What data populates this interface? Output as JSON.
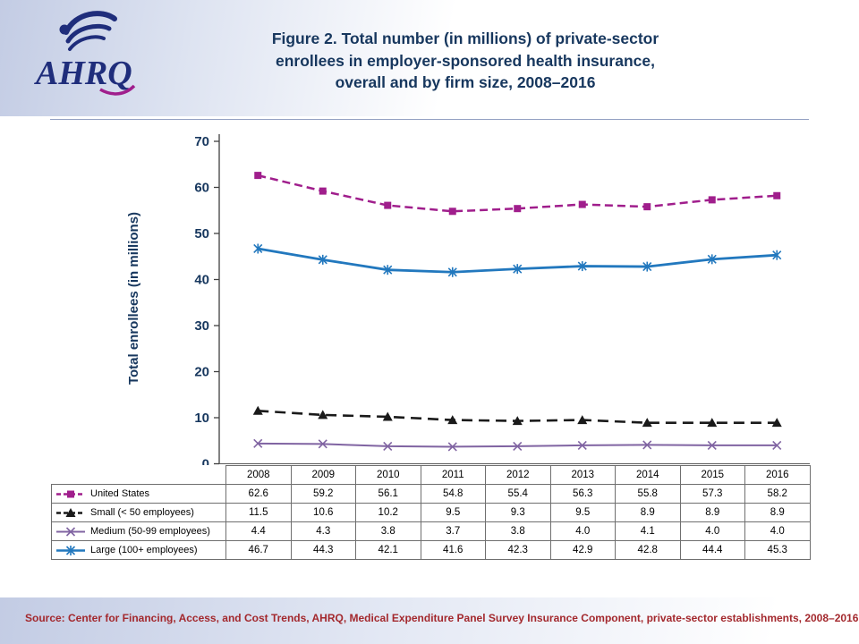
{
  "header": {
    "logo_text": "AHRQ",
    "title": "Figure 2. Total number (in millions) of private-sector\nenrollees in employer-sponsored health insurance,\noverall and by firm size, 2008–2016",
    "title_color": "#17375E"
  },
  "chart_data": {
    "type": "line",
    "title": "Figure 2. Total number (in millions) of private-sector enrollees in employer-sponsored health insurance, overall and by firm size, 2008–2016",
    "xlabel": "",
    "ylabel": "Total enrollees (in millions)",
    "ylim": [
      0,
      70
    ],
    "ytick_step": 10,
    "grid": false,
    "legend_position": "table-left",
    "categories": [
      "2008",
      "2009",
      "2010",
      "2011",
      "2012",
      "2013",
      "2014",
      "2015",
      "2016"
    ],
    "series": [
      {
        "name": "United States",
        "values": [
          62.6,
          59.2,
          56.1,
          54.8,
          55.4,
          56.3,
          55.8,
          57.3,
          58.2
        ],
        "color": "#A01E8C",
        "line_style": "dashed",
        "dash": [
          9,
          5
        ],
        "width": 2.5,
        "marker": "square"
      },
      {
        "name": "Small (< 50 employees)",
        "values": [
          11.5,
          10.6,
          10.2,
          9.5,
          9.3,
          9.5,
          8.9,
          8.9,
          8.9
        ],
        "color": "#1A1A1A",
        "line_style": "dashed",
        "dash": [
          12,
          7
        ],
        "width": 2.6,
        "marker": "triangle"
      },
      {
        "name": "Medium (50-99 employees)",
        "values": [
          4.4,
          4.3,
          3.8,
          3.7,
          3.8,
          4.0,
          4.1,
          4.0,
          4.0
        ],
        "color": "#8064A2",
        "line_style": "solid",
        "dash": null,
        "width": 2,
        "marker": "x"
      },
      {
        "name": "Large (100+ employees)",
        "values": [
          46.7,
          44.3,
          42.1,
          41.6,
          42.3,
          42.9,
          42.8,
          44.4,
          45.3
        ],
        "color": "#2278BE",
        "line_style": "solid",
        "dash": null,
        "width": 2.8,
        "marker": "asterisk"
      }
    ],
    "axis_color": "#404040",
    "tick_label_color": "#17375E"
  },
  "footer": {
    "source": "Source: Center for Financing, Access, and Cost Trends, AHRQ, Medical Expenditure Panel Survey Insurance Component, private-sector establishments, 2008–2016",
    "source_color": "#A3282D"
  }
}
